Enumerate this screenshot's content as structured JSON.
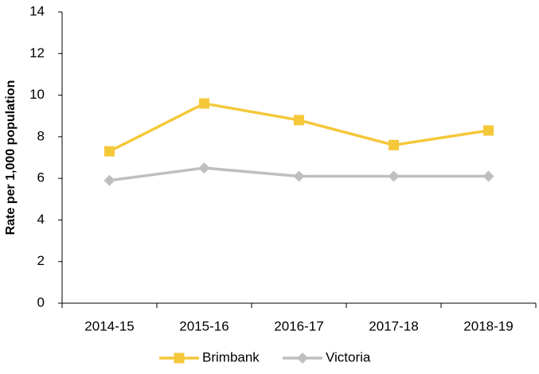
{
  "chart_data": {
    "type": "line",
    "y_label": "Rate per 1,000 population",
    "categories": [
      "2014-15",
      "2015-16",
      "2016-17",
      "2017-18",
      "2018-19"
    ],
    "series": [
      {
        "name": "Brimbank",
        "color": "#f5c83a",
        "marker": "square",
        "values": [
          7.3,
          9.6,
          8.8,
          7.6,
          8.3
        ]
      },
      {
        "name": "Victoria",
        "color": "#bfbfbf",
        "marker": "diamond",
        "values": [
          5.9,
          6.5,
          6.1,
          6.1,
          6.1
        ]
      }
    ],
    "ylim": [
      0,
      14
    ],
    "yticks": [
      0,
      2,
      4,
      6,
      8,
      10,
      12,
      14
    ],
    "grid": false,
    "legend": "bottom"
  }
}
